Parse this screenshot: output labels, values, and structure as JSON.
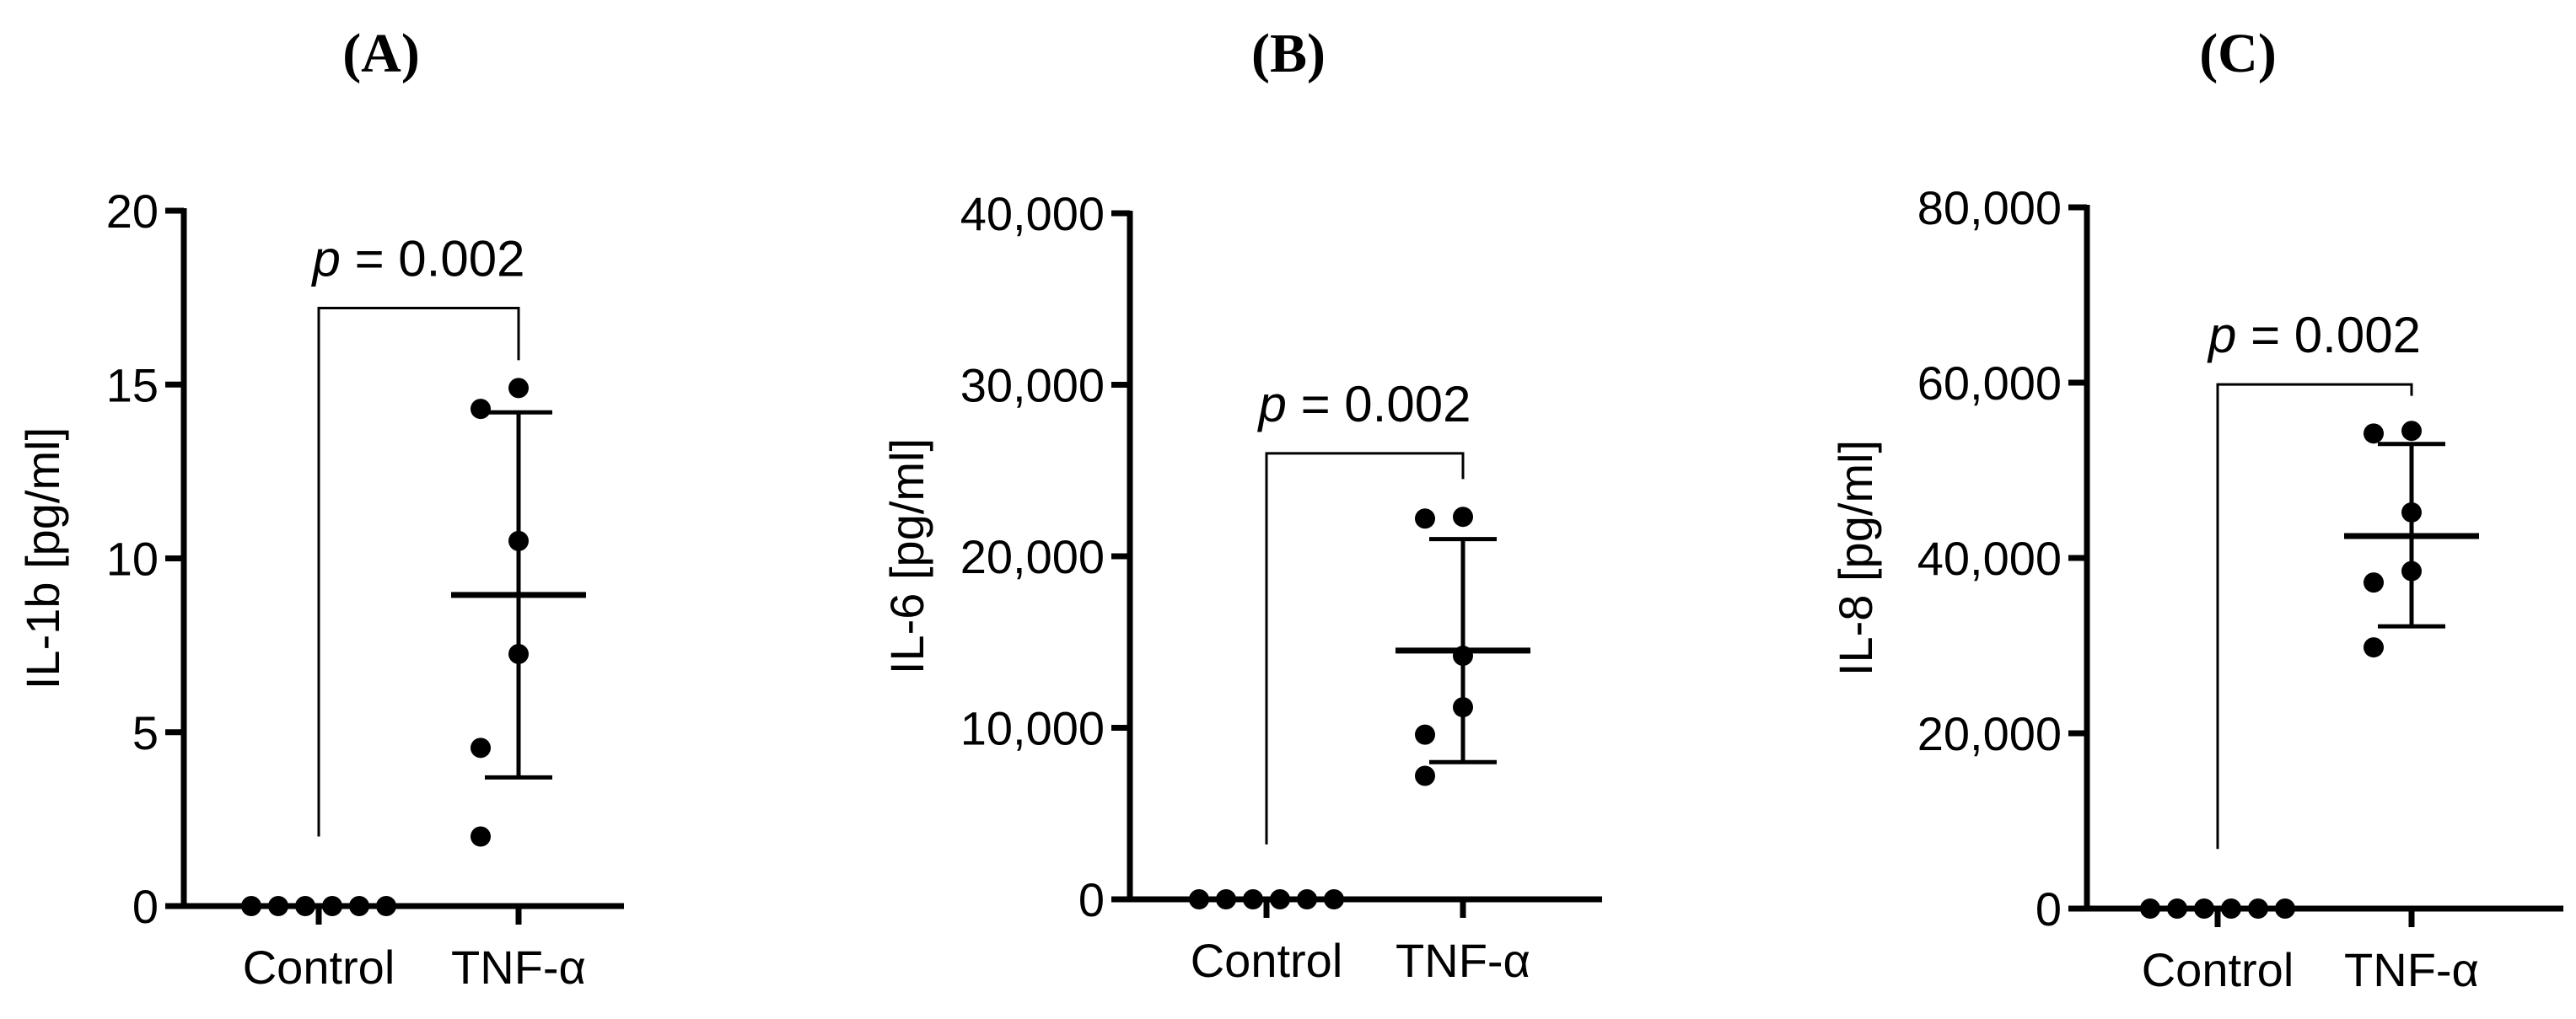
{
  "chart_data": [
    {
      "type": "scatter",
      "panel_label": "(A)",
      "ylabel": "IL-1b [pg/ml]",
      "ylim": [
        0,
        20
      ],
      "yticks": [
        0,
        5,
        10,
        15,
        20
      ],
      "ytick_labels": [
        "0",
        "5",
        "10",
        "15",
        "20"
      ],
      "categories": [
        "Control",
        "TNF-α"
      ],
      "points": [
        [
          0,
          0,
          0,
          0,
          0,
          0
        ],
        [
          2.0,
          4.55,
          7.25,
          10.5,
          14.3,
          14.9
        ]
      ],
      "summary": [
        {
          "mean": 0,
          "sd_low": 0,
          "sd_high": 0
        },
        {
          "mean": 8.95,
          "sd_low": 3.7,
          "sd_high": 14.2
        }
      ],
      "p_value": "= 0.002",
      "p_letter": "p",
      "bracket_left_bottom": 2.0,
      "bracket_right_bottom": 15.7,
      "bracket_top": 17.2
    },
    {
      "type": "scatter",
      "panel_label": "(B)",
      "ylabel": "IL-6 [pg/ml]",
      "ylim": [
        0,
        40000
      ],
      "yticks": [
        0,
        10000,
        20000,
        30000,
        40000
      ],
      "ytick_labels": [
        "0",
        "10,000",
        "20,000",
        "30,000",
        "40,000"
      ],
      "categories": [
        "Control",
        "TNF-α"
      ],
      "points": [
        [
          0,
          0,
          0,
          0,
          0,
          0
        ],
        [
          7200,
          9600,
          11200,
          14200,
          22200,
          22300
        ]
      ],
      "summary": [
        {
          "mean": 0,
          "sd_low": 0,
          "sd_high": 0
        },
        {
          "mean": 14500,
          "sd_low": 8000,
          "sd_high": 21000
        }
      ],
      "p_value": "= 0.002",
      "p_letter": "p",
      "bracket_left_bottom": 3200,
      "bracket_right_bottom": 24500,
      "bracket_top": 26000
    },
    {
      "type": "scatter",
      "panel_label": "(C)",
      "ylabel": "IL-8 [pg/ml]",
      "ylim": [
        0,
        80000
      ],
      "yticks": [
        0,
        20000,
        40000,
        60000,
        80000
      ],
      "ytick_labels": [
        "0",
        "20,000",
        "40,000",
        "60,000",
        "80,000"
      ],
      "categories": [
        "Control",
        "TNF-α"
      ],
      "points": [
        [
          0,
          0,
          0,
          0,
          0,
          0
        ],
        [
          29800,
          37200,
          38500,
          45200,
          54200,
          54500
        ]
      ],
      "summary": [
        {
          "mean": 0,
          "sd_low": 0,
          "sd_high": 0
        },
        {
          "mean": 42500,
          "sd_low": 32200,
          "sd_high": 53000
        }
      ],
      "p_value": "= 0.002",
      "p_letter": "p",
      "bracket_left_bottom": 6800,
      "bracket_right_bottom": 58500,
      "bracket_top": 59800
    }
  ]
}
